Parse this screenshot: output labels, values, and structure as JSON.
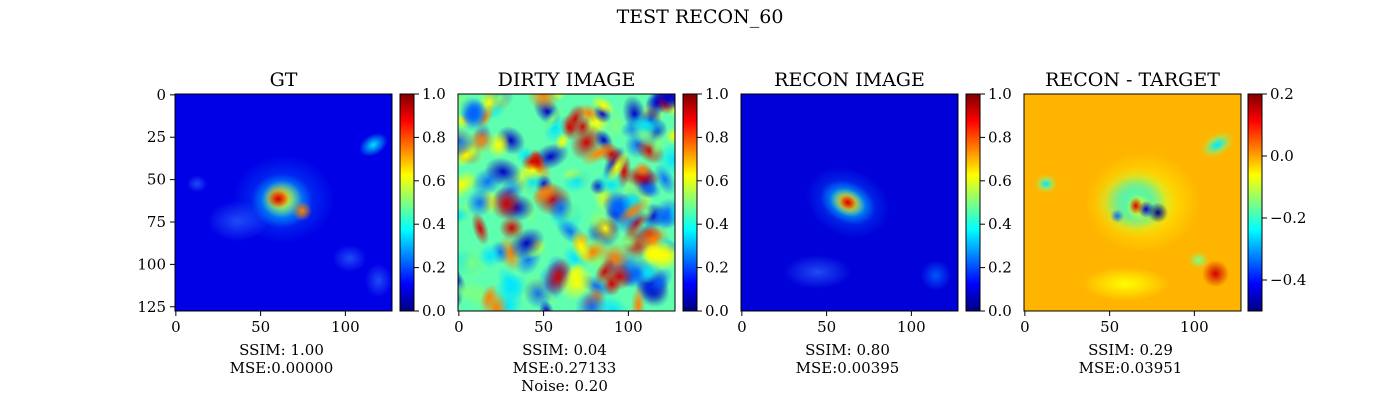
{
  "figure": {
    "title": "TEST RECON_60"
  },
  "colormap": [
    "#00007f",
    "#0000ff",
    "#007fff",
    "#00ffff",
    "#7fff7f",
    "#ffff00",
    "#ff7f00",
    "#ff0000",
    "#7f0000"
  ],
  "chart_data": [
    {
      "type": "heatmap",
      "title": "GT",
      "image_size": [
        128,
        128
      ],
      "xticks": [
        0,
        50,
        100
      ],
      "yticks": [
        0,
        25,
        50,
        75,
        100,
        125
      ],
      "colorbar": {
        "vmin": 0.0,
        "vmax": 1.0,
        "ticks": [
          "0.0",
          "0.2",
          "0.4",
          "0.6",
          "0.8",
          "1.0"
        ],
        "tick_values": [
          0,
          0.2,
          0.4,
          0.6,
          0.8,
          1.0
        ]
      },
      "caption": [
        "SSIM: 1.00",
        "MSE:0.00000"
      ]
    },
    {
      "type": "heatmap",
      "title": "DIRTY IMAGE",
      "image_size": [
        128,
        128
      ],
      "xticks": [
        0,
        50,
        100
      ],
      "yticks": [],
      "colorbar": {
        "vmin": 0.0,
        "vmax": 1.0,
        "ticks": [
          "0.0",
          "0.2",
          "0.4",
          "0.6",
          "0.8",
          "1.0"
        ],
        "tick_values": [
          0,
          0.2,
          0.4,
          0.6,
          0.8,
          1.0
        ]
      },
      "caption": [
        "SSIM: 0.04",
        "MSE:0.27133",
        "Noise: 0.20"
      ]
    },
    {
      "type": "heatmap",
      "title": "RECON IMAGE",
      "image_size": [
        128,
        128
      ],
      "xticks": [
        0,
        50,
        100
      ],
      "yticks": [],
      "colorbar": {
        "vmin": 0.0,
        "vmax": 1.0,
        "ticks": [
          "0.0",
          "0.2",
          "0.4",
          "0.6",
          "0.8",
          "1.0"
        ],
        "tick_values": [
          0,
          0.2,
          0.4,
          0.6,
          0.8,
          1.0
        ]
      },
      "caption": [
        "SSIM: 0.80",
        "MSE:0.00395"
      ]
    },
    {
      "type": "heatmap",
      "title": "RECON - TARGET",
      "image_size": [
        128,
        128
      ],
      "xticks": [
        0,
        50,
        100
      ],
      "yticks": [],
      "colorbar": {
        "vmin": -0.5,
        "vmax": 0.2,
        "ticks": [
          "0.2",
          "0.0",
          "−0.2",
          "−0.4"
        ],
        "tick_values": [
          0.2,
          0.0,
          -0.2,
          -0.4
        ]
      },
      "caption": [
        "SSIM: 0.29",
        "MSE:0.03951"
      ]
    }
  ]
}
